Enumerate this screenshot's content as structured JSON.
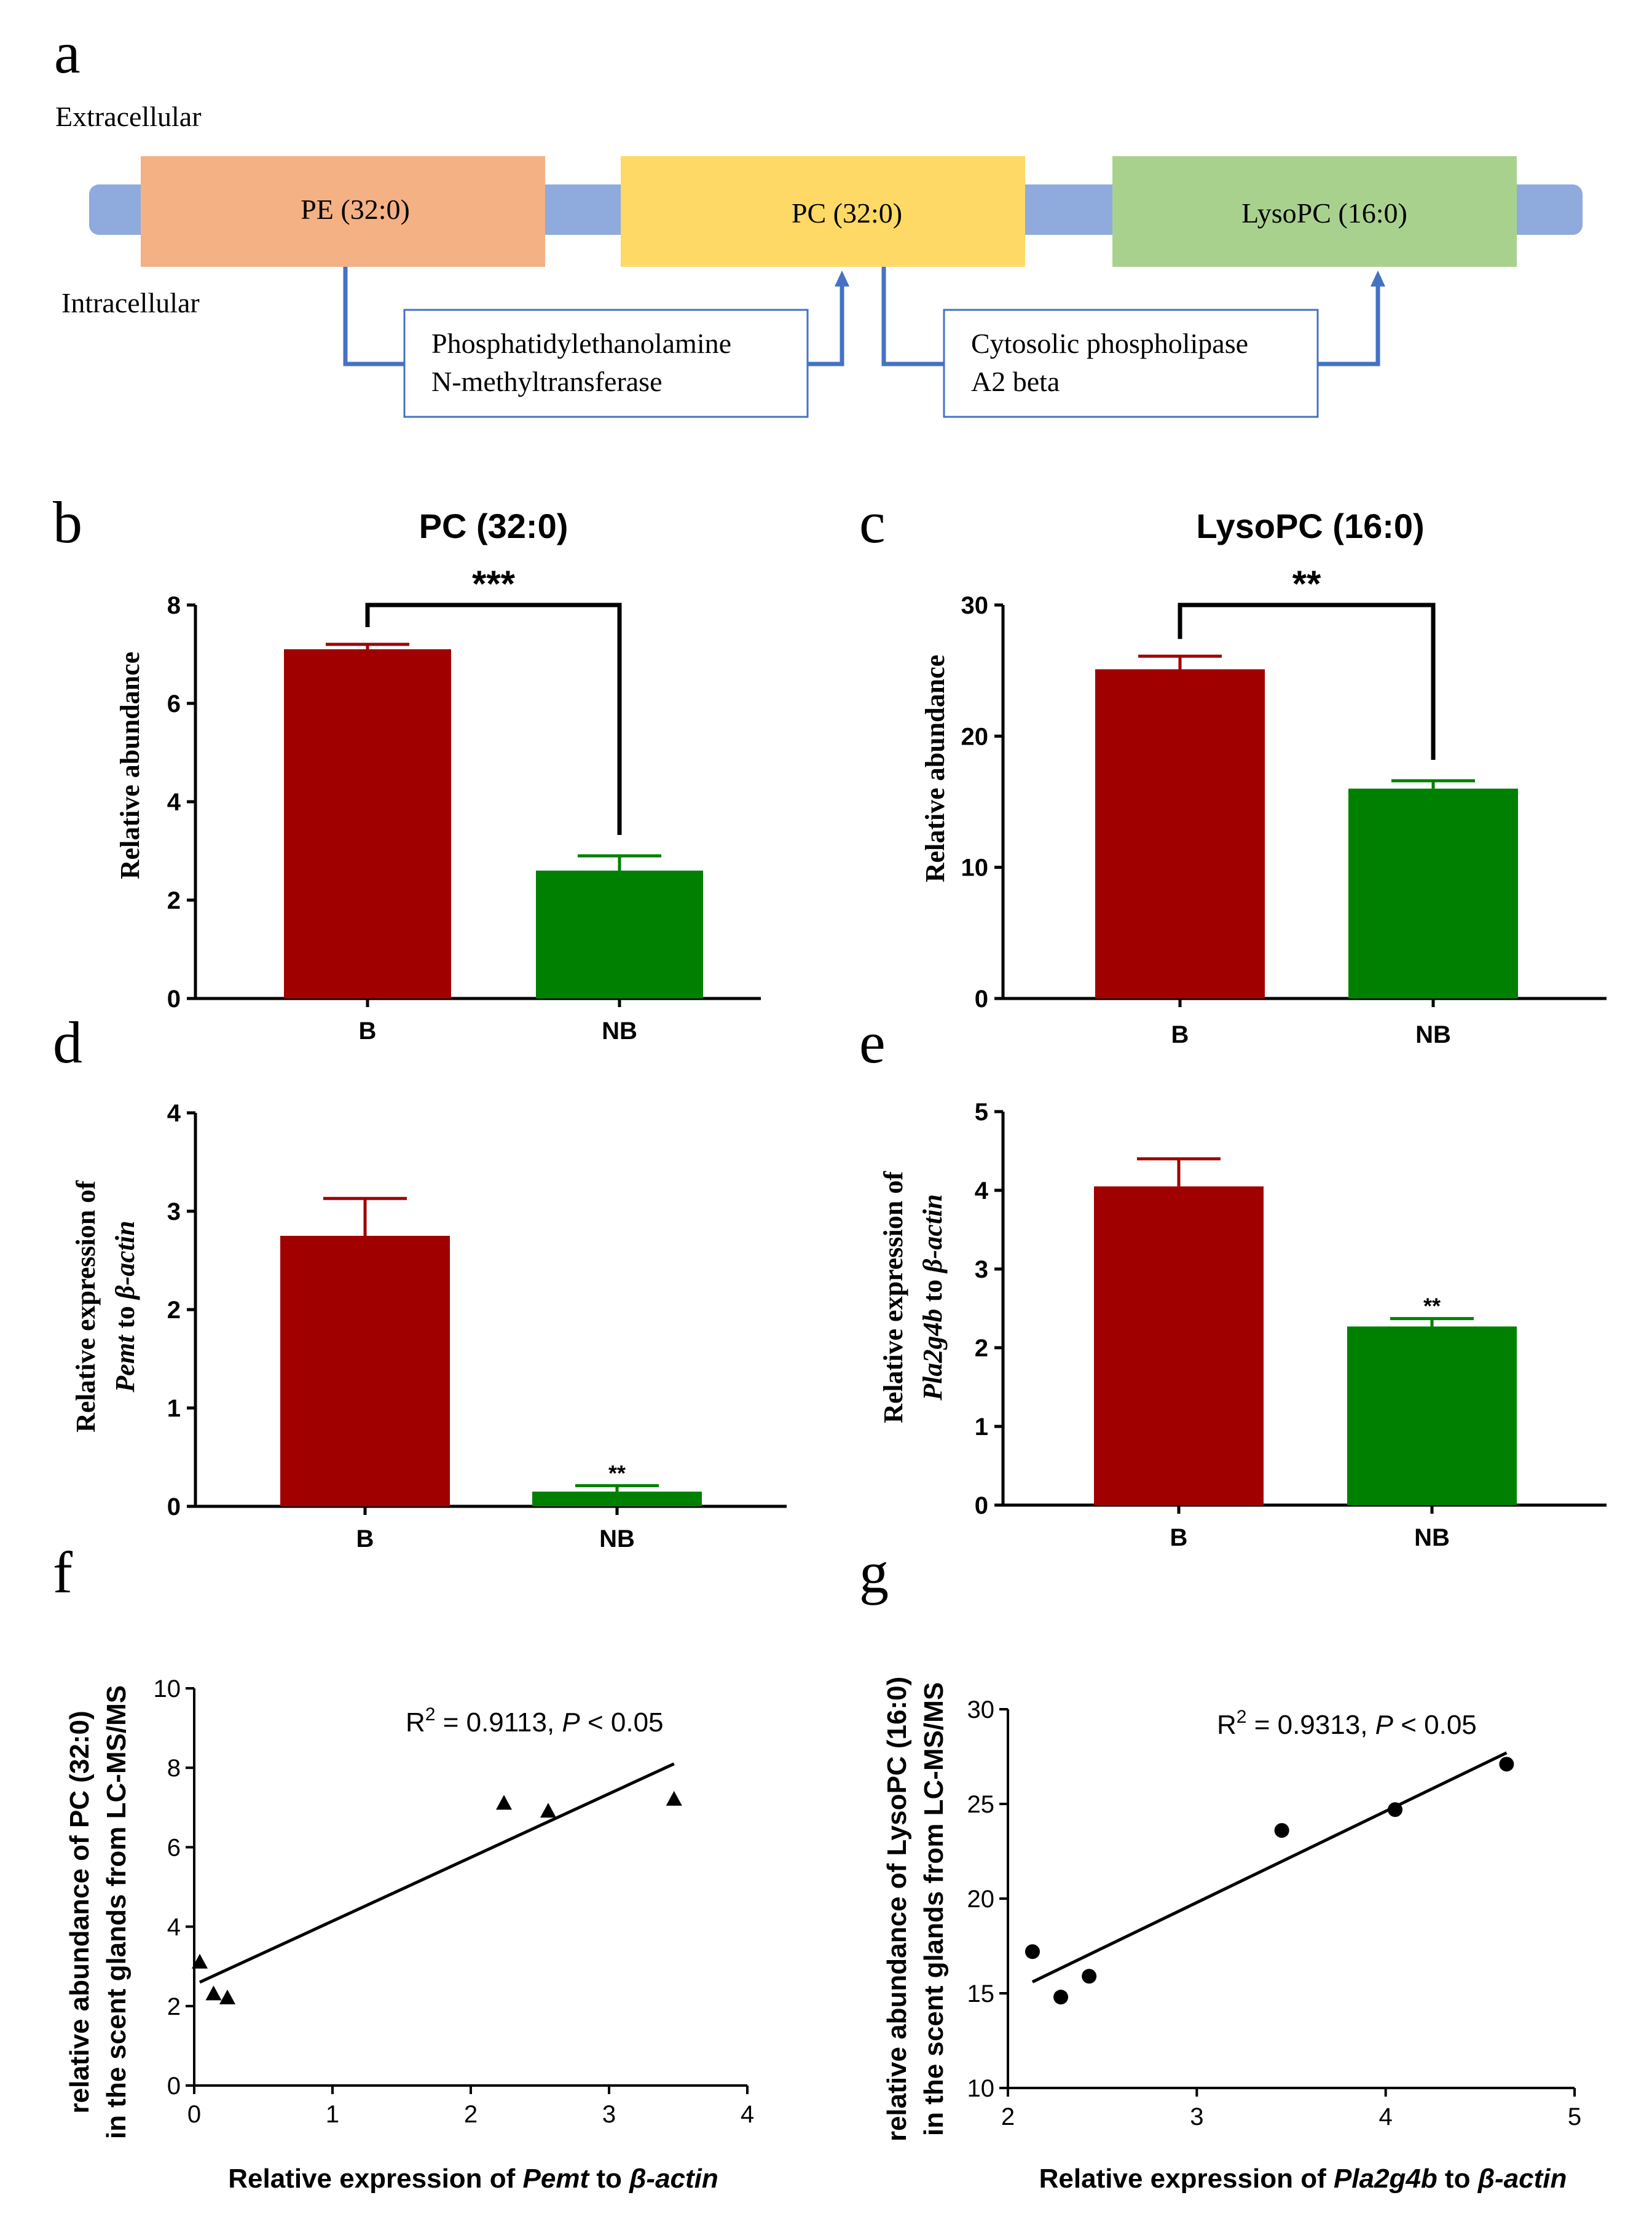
{
  "panel_labels": {
    "a": "a",
    "b": "b",
    "c": "c",
    "d": "d",
    "e": "e",
    "f": "f",
    "g": "g"
  },
  "pathway": {
    "extracellular": "Extracellular",
    "intracellular": "Intracellular",
    "boxes": [
      "PE (32:0)",
      "PC (32:0)",
      "LysoPC (16:0)"
    ],
    "box_colors": [
      "#F4B183",
      "#FFD966",
      "#A9D18E"
    ],
    "membrane_color": "#8FAADC",
    "arrow_color": "#4472C4",
    "enzyme1": [
      "Phosphatidylethanolamine",
      "N-methyltransferase"
    ],
    "enzyme2": [
      "Cytosolic phospholipase",
      "A2 beta"
    ]
  },
  "colors": {
    "B": "#A00000",
    "NB": "#008000"
  },
  "chart_data": [
    {
      "id": "b",
      "type": "bar",
      "title": "PC (32:0)",
      "categories": [
        "B",
        "NB"
      ],
      "values": [
        7.1,
        2.6
      ],
      "errors": [
        0.1,
        0.3
      ],
      "ylabel": "Relative abundance",
      "ylim": [
        0,
        8
      ],
      "yticks": [
        "0",
        "2",
        "4",
        "6",
        "8"
      ],
      "significance": "***",
      "sig_style": "bracket"
    },
    {
      "id": "c",
      "type": "bar",
      "title": "LysoPC (16:0)",
      "categories": [
        "B",
        "NB"
      ],
      "values": [
        25.1,
        16.0
      ],
      "errors": [
        1.0,
        0.6
      ],
      "ylabel": "Relative abundance",
      "ylim": [
        0,
        30
      ],
      "yticks": [
        "0",
        "10",
        "20",
        "30"
      ],
      "significance": "**",
      "sig_style": "bracket"
    },
    {
      "id": "d",
      "type": "bar",
      "title": "",
      "categories": [
        "B",
        "NB"
      ],
      "values": [
        2.75,
        0.15
      ],
      "errors": [
        0.38,
        0.06
      ],
      "ylabel_line1": "Relative expression of",
      "ylabel_gene": "Pemt",
      "ylabel_to": "to",
      "ylabel_ref": "β-actin",
      "ylim": [
        0,
        4
      ],
      "yticks": [
        "0",
        "1",
        "2",
        "3",
        "4"
      ],
      "significance": "**",
      "sig_style": "above_bar"
    },
    {
      "id": "e",
      "type": "bar",
      "title": "",
      "categories": [
        "B",
        "NB"
      ],
      "values": [
        4.05,
        2.27
      ],
      "errors": [
        0.35,
        0.1
      ],
      "ylabel_line1": "Relative expression of",
      "ylabel_gene": "Pla2g4b",
      "ylabel_to": "to",
      "ylabel_ref": "β-actin",
      "ylim": [
        0,
        5
      ],
      "yticks": [
        "0",
        "1",
        "2",
        "3",
        "4",
        "5"
      ],
      "significance": "**",
      "sig_style": "above_bar"
    },
    {
      "id": "f",
      "type": "scatter",
      "marker": "triangle",
      "x": [
        0.04,
        0.14,
        0.24,
        2.24,
        2.56,
        3.47
      ],
      "y": [
        3.1,
        2.3,
        2.2,
        7.1,
        6.9,
        7.2
      ],
      "fit": {
        "x": [
          0.04,
          3.47
        ],
        "y": [
          2.6,
          8.1
        ]
      },
      "xlim": [
        0,
        4
      ],
      "ylim": [
        0,
        10
      ],
      "xticks": [
        "0",
        "1",
        "2",
        "3",
        "4"
      ],
      "yticks": [
        "0",
        "2",
        "4",
        "6",
        "8",
        "10"
      ],
      "annotation": {
        "r2_prefix": "R",
        "r2_sup": "2",
        "r2_value": " = 0.9113, ",
        "p_italic": "P",
        "p_value": " < 0.05"
      },
      "ylabel": [
        "relative abundance of PC (32:0)",
        "in the scent glands from LC-MS/MS"
      ],
      "xlabel": {
        "pre": "Relative expression of ",
        "gene": "Pemt",
        "mid": " to ",
        "ref": "β-actin"
      }
    },
    {
      "id": "g",
      "type": "scatter",
      "marker": "circle",
      "x": [
        2.13,
        2.28,
        2.43,
        3.45,
        4.05,
        4.64
      ],
      "y": [
        17.2,
        14.8,
        15.9,
        23.6,
        24.7,
        27.1
      ],
      "fit": {
        "x": [
          2.13,
          4.64
        ],
        "y": [
          15.6,
          27.7
        ]
      },
      "xlim": [
        2,
        5
      ],
      "ylim": [
        10,
        30
      ],
      "xticks": [
        "2",
        "3",
        "4",
        "5"
      ],
      "yticks": [
        "10",
        "15",
        "20",
        "25",
        "30"
      ],
      "annotation": {
        "r2_prefix": "R",
        "r2_sup": "2",
        "r2_value": " = 0.9313, ",
        "p_italic": "P",
        "p_value": " < 0.05"
      },
      "ylabel": [
        "relative abundance of LysoPC (16:0)",
        "in the scent glands from LC-MS/MS"
      ],
      "xlabel": {
        "pre": "Relative expression of ",
        "gene": "Pla2g4b",
        "mid": " to ",
        "ref": "β-actin"
      }
    }
  ]
}
